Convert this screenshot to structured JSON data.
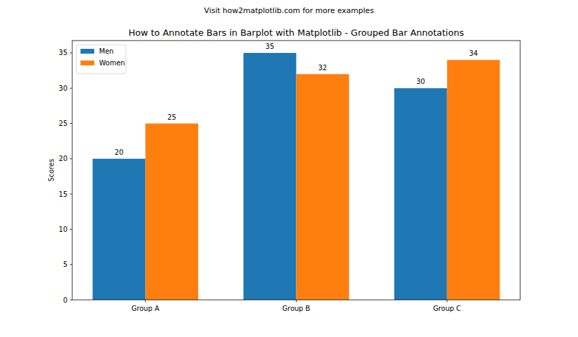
{
  "chart_data": {
    "type": "bar",
    "subtitle": "Visit how2matplotlib.com for more examples",
    "title": "How to Annotate Bars in Barplot with Matplotlib - Grouped Bar Annotations",
    "y_label": "Scores",
    "categories": [
      "Group A",
      "Group B",
      "Group C"
    ],
    "series": [
      {
        "name": "Men",
        "color": "#1f77b4",
        "values": [
          20,
          35,
          30
        ]
      },
      {
        "name": "Women",
        "color": "#ff7f0e",
        "values": [
          25,
          32,
          34
        ]
      }
    ],
    "ylim": [
      0,
      36.75
    ],
    "yticks": [
      0,
      5,
      10,
      15,
      20,
      25,
      30,
      35
    ],
    "legend": "upper left",
    "data_labels": true,
    "grid": false
  }
}
